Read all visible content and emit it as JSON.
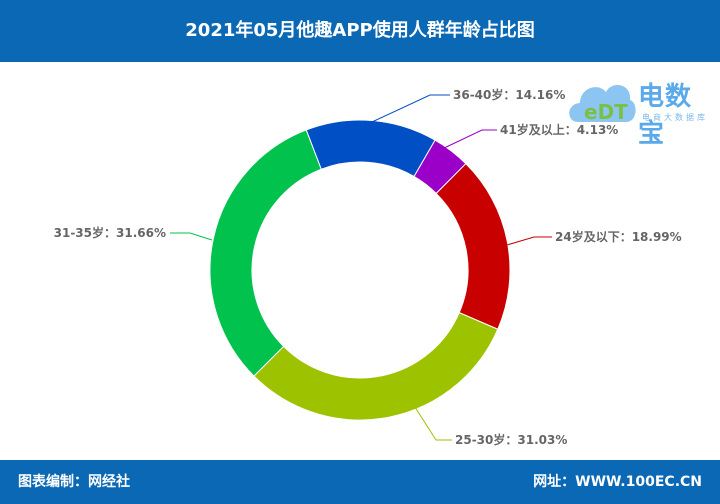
{
  "header": {
    "title": "2021年05月他趣APP使用人群年龄占比图"
  },
  "footer": {
    "left": "图表编制：网经社",
    "right": "网址：WWW.100EC.CN"
  },
  "logo": {
    "name": "电数宝",
    "subtitle": "电商大数据库",
    "mark": "eDT"
  },
  "chart_data": {
    "type": "pie",
    "title": "2021年05月他趣APP使用人群年龄占比图",
    "donut": true,
    "slices": [
      {
        "label": "41岁及以上",
        "value": 4.13,
        "color": "#9b00c8",
        "text": "41岁及以上：4.13%"
      },
      {
        "label": "24岁及以下",
        "value": 18.99,
        "color": "#c80000",
        "text": "24岁及以下：18.99%"
      },
      {
        "label": "25-30岁",
        "value": 31.03,
        "color": "#9dc300",
        "text": "25-30岁：31.03%"
      },
      {
        "label": "31-35岁",
        "value": 31.66,
        "color": "#00c24d",
        "text": "31-35岁：31.66%"
      },
      {
        "label": "36-40岁",
        "value": 14.16,
        "color": "#004fc4",
        "text": "36-40岁：14.16%"
      }
    ]
  }
}
